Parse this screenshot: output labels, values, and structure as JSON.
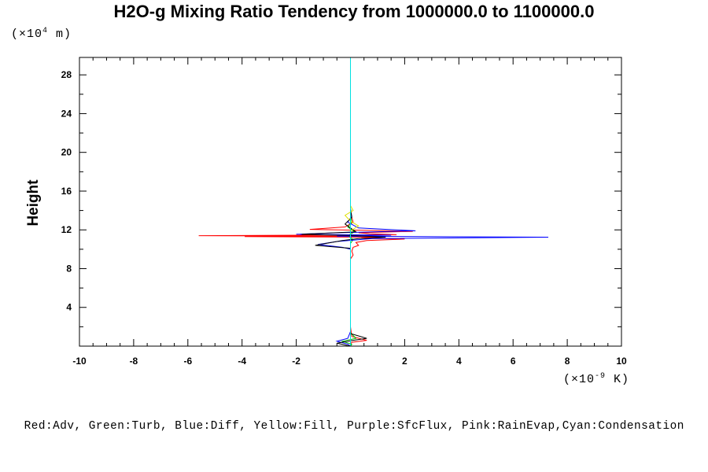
{
  "chart_data": {
    "type": "line",
    "title": "H2O-g Mixing Ratio Tendency from 1000000.0 to 1100000.0",
    "ylabel": "Height",
    "xlabel": "",
    "x_unit": "(×10",
    "x_unit_exp": "-9",
    "x_unit_tail": " K)",
    "y_unit": "(×10",
    "y_unit_exp": "4",
    "y_unit_tail": " m)",
    "xlim": [
      -10,
      10
    ],
    "ylim": [
      0,
      29.8
    ],
    "x_ticks": [
      -10,
      -8,
      -6,
      -4,
      -2,
      0,
      2,
      4,
      6,
      8,
      10
    ],
    "y_ticks": [
      4,
      8,
      12,
      16,
      20,
      24,
      28
    ],
    "x_tick_labels": [
      "-10",
      "-8",
      "-6",
      "-4",
      "-2",
      "0",
      "2",
      "4",
      "6",
      "8",
      "10"
    ],
    "y_tick_labels": [
      "4",
      "8",
      "12",
      "16",
      "20",
      "24",
      "28"
    ],
    "legend_text": "Red:Adv, Green:Turb, Blue:Diff, Yellow:Fill, Purple:SfcFlux, Pink:RainEvap,Cyan:Condensation",
    "series": [
      {
        "color": "#ff0000",
        "x": [
          0,
          0,
          0.05,
          0.6,
          0.05,
          0,
          0,
          0.1,
          0.05,
          0.1,
          0.3,
          0.2,
          0.6,
          2.0,
          0.4,
          1.2,
          -3.9,
          0.3,
          -5.6,
          1.7,
          0.7,
          0.3,
          2.3,
          0.5,
          -1.5,
          -0.2,
          0.1,
          0.05,
          0,
          0
        ],
        "y": [
          0,
          0.2,
          0.4,
          0.6,
          1.0,
          2.0,
          9.0,
          9.4,
          9.8,
          10.2,
          10.4,
          10.7,
          10.9,
          11.05,
          11.15,
          11.25,
          11.3,
          11.35,
          11.4,
          11.5,
          11.6,
          11.7,
          11.85,
          11.95,
          12.05,
          12.3,
          12.8,
          13.3,
          14.0,
          29.8
        ]
      },
      {
        "color": "#00c000",
        "x": [
          0,
          0.05,
          -0.3,
          0.2,
          0,
          0,
          0.1,
          -0.1,
          0.15,
          -0.1,
          0.05,
          0,
          0
        ],
        "y": [
          0,
          0.2,
          0.5,
          0.8,
          1.4,
          10.6,
          11.0,
          11.4,
          11.8,
          12.3,
          12.8,
          13.5,
          29.8
        ]
      },
      {
        "color": "#0000ff",
        "x": [
          0,
          -0.1,
          -0.5,
          -0.1,
          0,
          0,
          -0.3,
          -1.2,
          -0.5,
          0.8,
          7.3,
          -0.5,
          1.5,
          -2.0,
          -0.4,
          2.4,
          0.3,
          -0.1,
          0.05,
          0,
          0
        ],
        "y": [
          0,
          0.2,
          0.5,
          0.8,
          1.5,
          10.0,
          10.2,
          10.5,
          10.8,
          11.1,
          11.25,
          11.35,
          11.45,
          11.55,
          11.7,
          11.9,
          12.2,
          12.8,
          13.4,
          14.0,
          29.8
        ]
      },
      {
        "color": "#000000",
        "x": [
          0,
          -0.5,
          0.1,
          0.6,
          0,
          0,
          -1.3,
          -0.3,
          0.3,
          1.3,
          0.2,
          -1.8,
          0.2,
          -0.2,
          0.05,
          0,
          0
        ],
        "y": [
          0,
          0.3,
          0.6,
          0.8,
          1.3,
          10.1,
          10.4,
          10.9,
          11.1,
          11.25,
          11.4,
          11.55,
          11.8,
          12.6,
          13.3,
          14.2,
          29.8
        ]
      },
      {
        "color": "#e0e000",
        "x": [
          0,
          0,
          0.3,
          0,
          -0.2,
          0.1,
          0,
          0
        ],
        "y": [
          0,
          11.9,
          12.4,
          12.9,
          13.5,
          14.0,
          14.5,
          29.8
        ]
      },
      {
        "color": "#00e0e0",
        "x": [
          0,
          0,
          0
        ],
        "y": [
          0,
          15.0,
          29.8
        ]
      }
    ]
  }
}
